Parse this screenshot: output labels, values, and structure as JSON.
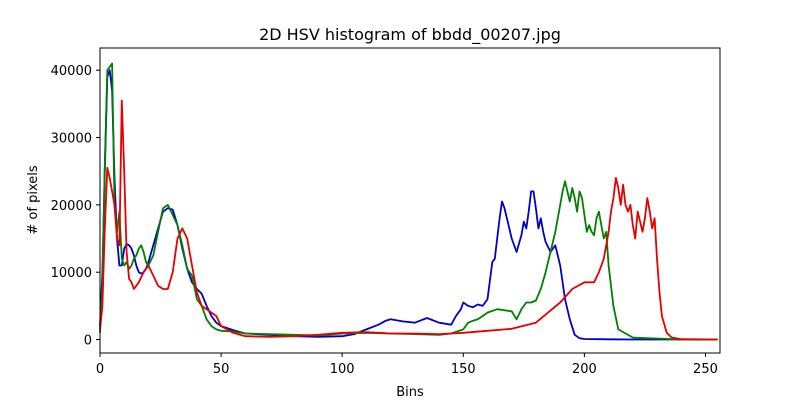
{
  "chart_data": {
    "type": "line",
    "title": "2D HSV histogram of bbdd_00207.jpg",
    "xlabel": "Bins",
    "ylabel": "# of pixels",
    "xlim": [
      0,
      256
    ],
    "ylim": [
      -2000,
      43300
    ],
    "xticks": [
      0,
      50,
      100,
      150,
      200,
      250
    ],
    "yticks": [
      0,
      10000,
      20000,
      30000,
      40000
    ],
    "grid": false,
    "series": [
      {
        "color": "#0000cc",
        "x": [
          0,
          1,
          2,
          3,
          4,
          5,
          6,
          7,
          8,
          9,
          10,
          11,
          12,
          13,
          14,
          15,
          16,
          17,
          18,
          19,
          20,
          22,
          24,
          26,
          28,
          30,
          32,
          34,
          36,
          38,
          40,
          42,
          44,
          46,
          48,
          50,
          55,
          60,
          70,
          80,
          90,
          100,
          105,
          110,
          115,
          118,
          120,
          125,
          130,
          135,
          140,
          145,
          147,
          149,
          150,
          152,
          154,
          156,
          158,
          160,
          162,
          163,
          164,
          165,
          166,
          167,
          168,
          170,
          172,
          174,
          175,
          176,
          177,
          178,
          179,
          180,
          181,
          182,
          183,
          184,
          186,
          188,
          190,
          192,
          194,
          196,
          198,
          200,
          210,
          220,
          240,
          255
        ],
        "y": [
          2000,
          10000,
          25000,
          39000,
          40000,
          37000,
          24000,
          15000,
          11000,
          11000,
          13500,
          14200,
          14000,
          13500,
          12500,
          11000,
          10000,
          9800,
          10000,
          10500,
          11500,
          14000,
          16500,
          19000,
          19500,
          19300,
          17000,
          13500,
          10500,
          8500,
          7500,
          6800,
          5000,
          3500,
          2500,
          2000,
          1400,
          900,
          700,
          500,
          400,
          500,
          800,
          1500,
          2200,
          2800,
          3000,
          2700,
          2500,
          3200,
          2500,
          2200,
          3500,
          4500,
          5500,
          5000,
          4800,
          5200,
          5000,
          6000,
          11500,
          12000,
          15000,
          18000,
          20500,
          19500,
          18000,
          15000,
          13000,
          15500,
          17500,
          16500,
          19000,
          22000,
          22000,
          19500,
          16500,
          18000,
          16000,
          14500,
          13000,
          14000,
          11000,
          6000,
          3000,
          700,
          200,
          80,
          30,
          0,
          0,
          0
        ]
      },
      {
        "color": "#008000",
        "x": [
          0,
          1,
          2,
          3,
          4,
          5,
          6,
          7,
          8,
          9,
          10,
          11,
          12,
          13,
          14,
          15,
          16,
          17,
          18,
          19,
          20,
          22,
          24,
          26,
          28,
          30,
          32,
          34,
          36,
          38,
          40,
          42,
          44,
          46,
          48,
          50,
          55,
          60,
          70,
          80,
          90,
          100,
          110,
          120,
          130,
          140,
          145,
          150,
          152,
          154,
          156,
          158,
          160,
          164,
          168,
          170,
          172,
          174,
          176,
          178,
          180,
          182,
          184,
          186,
          188,
          190,
          191,
          192,
          193,
          194,
          195,
          196,
          197,
          198,
          199,
          200,
          201,
          202,
          203,
          204,
          205,
          206,
          207,
          208,
          209,
          210,
          212,
          214,
          220,
          240,
          255
        ],
        "y": [
          1000,
          8000,
          26000,
          40000,
          40500,
          41000,
          20000,
          16000,
          19000,
          12000,
          11000,
          11500,
          10500,
          11000,
          12000,
          12500,
          13500,
          14000,
          13000,
          11500,
          11000,
          12500,
          16000,
          19500,
          20000,
          18500,
          17000,
          14000,
          10500,
          9500,
          6000,
          5000,
          3000,
          2000,
          1500,
          1300,
          1200,
          900,
          800,
          700,
          600,
          900,
          1000,
          900,
          800,
          700,
          900,
          1500,
          2500,
          2800,
          3000,
          3500,
          4000,
          4500,
          4300,
          4200,
          3000,
          4500,
          5500,
          5500,
          5800,
          7500,
          10000,
          13000,
          16000,
          20000,
          22000,
          23500,
          22000,
          20500,
          22500,
          21000,
          19000,
          22000,
          21000,
          18500,
          16000,
          17000,
          16000,
          15500,
          18000,
          19000,
          17000,
          15000,
          16000,
          11000,
          5000,
          1500,
          300,
          0,
          0
        ]
      },
      {
        "color": "#e60000",
        "x": [
          0,
          1,
          2,
          3,
          4,
          5,
          6,
          7,
          8,
          9,
          10,
          11,
          12,
          13,
          14,
          16,
          18,
          20,
          22,
          24,
          26,
          28,
          30,
          32,
          34,
          36,
          38,
          40,
          42,
          44,
          46,
          48,
          50,
          55,
          60,
          70,
          80,
          90,
          100,
          110,
          120,
          130,
          140,
          150,
          160,
          170,
          180,
          185,
          190,
          195,
          200,
          204,
          206,
          208,
          209,
          210,
          211,
          212,
          213,
          214,
          215,
          216,
          217,
          218,
          219,
          220,
          221,
          222,
          223,
          224,
          225,
          226,
          227,
          228,
          229,
          230,
          231,
          232,
          234,
          236,
          240,
          255
        ],
        "y": [
          1500,
          5000,
          16500,
          25500,
          24000,
          22000,
          20000,
          15000,
          14000,
          35500,
          25000,
          13000,
          9000,
          8500,
          7500,
          8500,
          10000,
          11000,
          9500,
          8000,
          7500,
          7500,
          10000,
          15000,
          16500,
          15000,
          11000,
          7000,
          5000,
          4500,
          4000,
          3500,
          2000,
          1000,
          500,
          400,
          500,
          700,
          1000,
          1100,
          900,
          900,
          800,
          1000,
          1300,
          1600,
          2500,
          4000,
          5500,
          7500,
          8500,
          8500,
          10000,
          12000,
          14000,
          16000,
          19000,
          21000,
          24000,
          22500,
          20000,
          23000,
          20000,
          19000,
          20000,
          17000,
          15000,
          19000,
          17500,
          16000,
          18000,
          21000,
          19000,
          16500,
          18000,
          12000,
          7000,
          3500,
          1000,
          300,
          50,
          0
        ]
      }
    ]
  }
}
